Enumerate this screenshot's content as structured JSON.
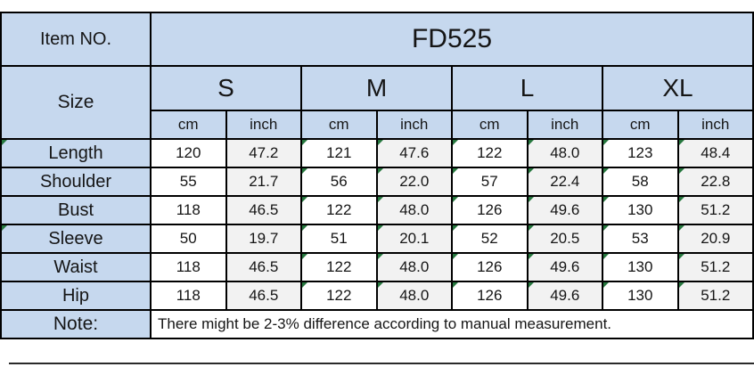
{
  "colors": {
    "header_bg": "#c6d8ee",
    "inch_col_bg": "#f2f2f2",
    "cm_col_bg": "#ffffff",
    "border": "#000000",
    "flag_green": "#27783f",
    "text": "#151515"
  },
  "table": {
    "item_no_label": "Item NO.",
    "item_no_value": "FD525",
    "size_label": "Size",
    "size_headers": [
      "S",
      "M",
      "L",
      "XL"
    ],
    "unit_pair": [
      "cm",
      "inch"
    ],
    "rows": [
      {
        "label": "Length",
        "label_flagged": true,
        "values": [
          "120",
          "47.2",
          "121",
          "47.6",
          "122",
          "48.0",
          "123",
          "48.4"
        ],
        "flags": [
          false,
          false,
          true,
          true,
          true,
          true,
          true,
          true
        ]
      },
      {
        "label": "Shoulder",
        "label_flagged": false,
        "values": [
          "55",
          "21.7",
          "56",
          "22.0",
          "57",
          "22.4",
          "58",
          "22.8"
        ],
        "flags": [
          false,
          false,
          true,
          true,
          true,
          true,
          true,
          true
        ]
      },
      {
        "label": "Bust",
        "label_flagged": false,
        "values": [
          "118",
          "46.5",
          "122",
          "48.0",
          "126",
          "49.6",
          "130",
          "51.2"
        ],
        "flags": [
          false,
          false,
          true,
          true,
          true,
          true,
          true,
          true
        ]
      },
      {
        "label": "Sleeve",
        "label_flagged": true,
        "values": [
          "50",
          "19.7",
          "51",
          "20.1",
          "52",
          "20.5",
          "53",
          "20.9"
        ],
        "flags": [
          false,
          false,
          true,
          true,
          true,
          true,
          true,
          true
        ]
      },
      {
        "label": "Waist",
        "label_flagged": false,
        "values": [
          "118",
          "46.5",
          "122",
          "48.0",
          "126",
          "49.6",
          "130",
          "51.2"
        ],
        "flags": [
          false,
          false,
          true,
          true,
          true,
          true,
          true,
          true
        ]
      },
      {
        "label": "Hip",
        "label_flagged": false,
        "values": [
          "118",
          "46.5",
          "122",
          "48.0",
          "126",
          "49.6",
          "130",
          "51.2"
        ],
        "flags": [
          false,
          false,
          true,
          true,
          true,
          true,
          true,
          true
        ]
      }
    ],
    "note_label": "Note:",
    "note_text": "There might be 2-3% difference according to manual measurement."
  }
}
